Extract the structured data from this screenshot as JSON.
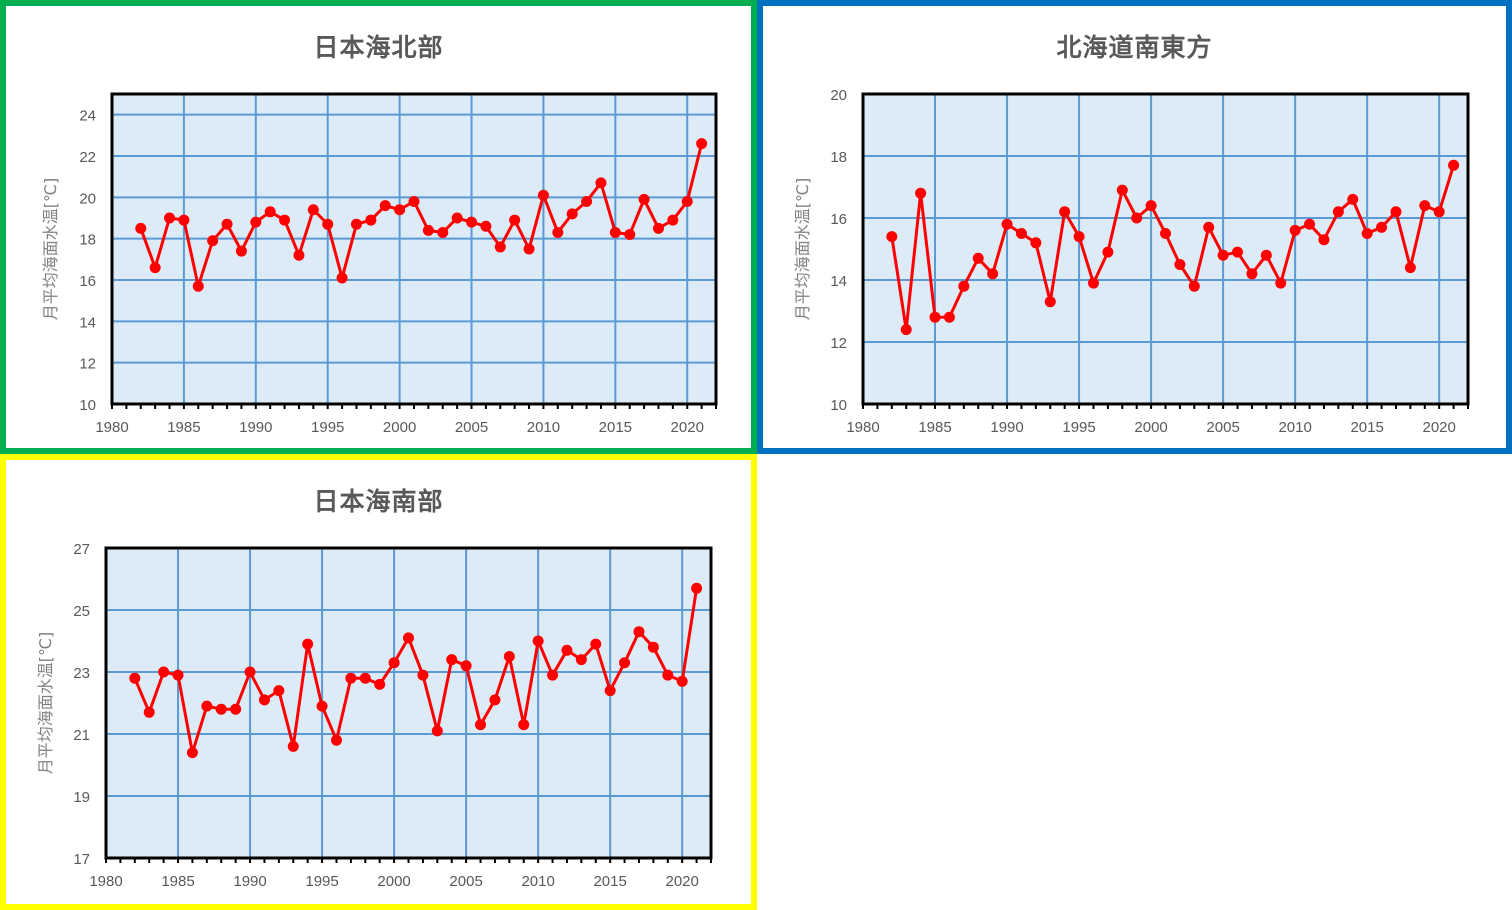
{
  "panels": [
    {
      "id": "north-sea-of-japan",
      "title": "日本海北部",
      "border_color": "#00B050"
    },
    {
      "id": "southeast-of-hokkaido",
      "title": "北海道南東方",
      "border_color": "#0070C0"
    },
    {
      "id": "south-sea-of-japan",
      "title": "日本海南部",
      "border_color": "#FFFF00"
    }
  ],
  "style": {
    "plot_bg": "#DDEBF7",
    "grid_color": "#5B9BD5",
    "line_color": "#FF0000",
    "tick_label_color": "#595959"
  },
  "chart_data": [
    {
      "type": "line",
      "title": "日本海北部",
      "xlabel": "",
      "ylabel": "月平均海面水温[℃]",
      "xlim": [
        1980,
        2022
      ],
      "ylim": [
        10,
        25
      ],
      "xticks": [
        1980,
        1985,
        1990,
        1995,
        2000,
        2005,
        2010,
        2015,
        2020
      ],
      "yticks": [
        10,
        12,
        14,
        16,
        18,
        20,
        22,
        24
      ],
      "grid": true,
      "legend": null,
      "x": [
        1982,
        1983,
        1984,
        1985,
        1986,
        1987,
        1988,
        1989,
        1990,
        1991,
        1992,
        1993,
        1994,
        1995,
        1996,
        1997,
        1998,
        1999,
        2000,
        2001,
        2002,
        2003,
        2004,
        2005,
        2006,
        2007,
        2008,
        2009,
        2010,
        2011,
        2012,
        2013,
        2014,
        2015,
        2016,
        2017,
        2018,
        2019,
        2020,
        2021
      ],
      "series": [
        {
          "name": "日本海北部",
          "values": [
            18.5,
            16.6,
            19.0,
            18.9,
            15.7,
            17.9,
            18.7,
            17.4,
            18.8,
            19.3,
            18.9,
            17.2,
            19.4,
            18.7,
            16.1,
            18.7,
            18.9,
            19.6,
            19.4,
            19.8,
            18.4,
            18.3,
            19.0,
            18.8,
            18.6,
            17.6,
            18.9,
            17.5,
            20.1,
            18.3,
            19.2,
            19.8,
            20.7,
            18.3,
            18.2,
            19.9,
            18.5,
            18.9,
            19.8,
            22.6
          ]
        }
      ]
    },
    {
      "type": "line",
      "title": "北海道南東方",
      "xlabel": "",
      "ylabel": "月平均海面水温[℃]",
      "xlim": [
        1980,
        2022
      ],
      "ylim": [
        10,
        20
      ],
      "xticks": [
        1980,
        1985,
        1990,
        1995,
        2000,
        2005,
        2010,
        2015,
        2020
      ],
      "yticks": [
        10,
        12,
        14,
        16,
        18,
        20
      ],
      "grid": true,
      "legend": null,
      "x": [
        1982,
        1983,
        1984,
        1985,
        1986,
        1987,
        1988,
        1989,
        1990,
        1991,
        1992,
        1993,
        1994,
        1995,
        1996,
        1997,
        1998,
        1999,
        2000,
        2001,
        2002,
        2003,
        2004,
        2005,
        2006,
        2007,
        2008,
        2009,
        2010,
        2011,
        2012,
        2013,
        2014,
        2015,
        2016,
        2017,
        2018,
        2019,
        2020,
        2021
      ],
      "series": [
        {
          "name": "北海道南東方",
          "values": [
            15.4,
            12.4,
            16.8,
            12.8,
            12.8,
            13.8,
            14.7,
            14.2,
            15.8,
            15.5,
            15.2,
            13.3,
            16.2,
            15.4,
            13.9,
            14.9,
            16.9,
            16.0,
            16.4,
            15.5,
            14.5,
            13.8,
            15.7,
            14.8,
            14.9,
            14.2,
            14.8,
            13.9,
            15.6,
            15.8,
            15.3,
            16.2,
            16.6,
            15.5,
            15.7,
            16.2,
            14.4,
            16.4,
            16.2,
            17.7
          ]
        }
      ]
    },
    {
      "type": "line",
      "title": "日本海南部",
      "xlabel": "",
      "ylabel": "月平均海面水温[℃]",
      "xlim": [
        1980,
        2022
      ],
      "ylim": [
        17,
        27
      ],
      "xticks": [
        1980,
        1985,
        1990,
        1995,
        2000,
        2005,
        2010,
        2015,
        2020
      ],
      "yticks": [
        17,
        19,
        21,
        23,
        25,
        27
      ],
      "grid": true,
      "legend": null,
      "x": [
        1982,
        1983,
        1984,
        1985,
        1986,
        1987,
        1988,
        1989,
        1990,
        1991,
        1992,
        1993,
        1994,
        1995,
        1996,
        1997,
        1998,
        1999,
        2000,
        2001,
        2002,
        2003,
        2004,
        2005,
        2006,
        2007,
        2008,
        2009,
        2010,
        2011,
        2012,
        2013,
        2014,
        2015,
        2016,
        2017,
        2018,
        2019,
        2020,
        2021
      ],
      "series": [
        {
          "name": "日本海南部",
          "values": [
            22.8,
            21.7,
            23.0,
            22.9,
            20.4,
            21.9,
            21.8,
            21.8,
            23.0,
            22.1,
            22.4,
            20.6,
            23.9,
            21.9,
            20.8,
            22.8,
            22.8,
            22.6,
            23.3,
            24.1,
            22.9,
            21.1,
            23.4,
            23.2,
            21.3,
            22.1,
            23.5,
            21.3,
            24.0,
            22.9,
            23.7,
            23.4,
            23.9,
            22.4,
            23.3,
            24.3,
            23.8,
            22.9,
            22.7,
            25.7
          ]
        }
      ]
    }
  ]
}
